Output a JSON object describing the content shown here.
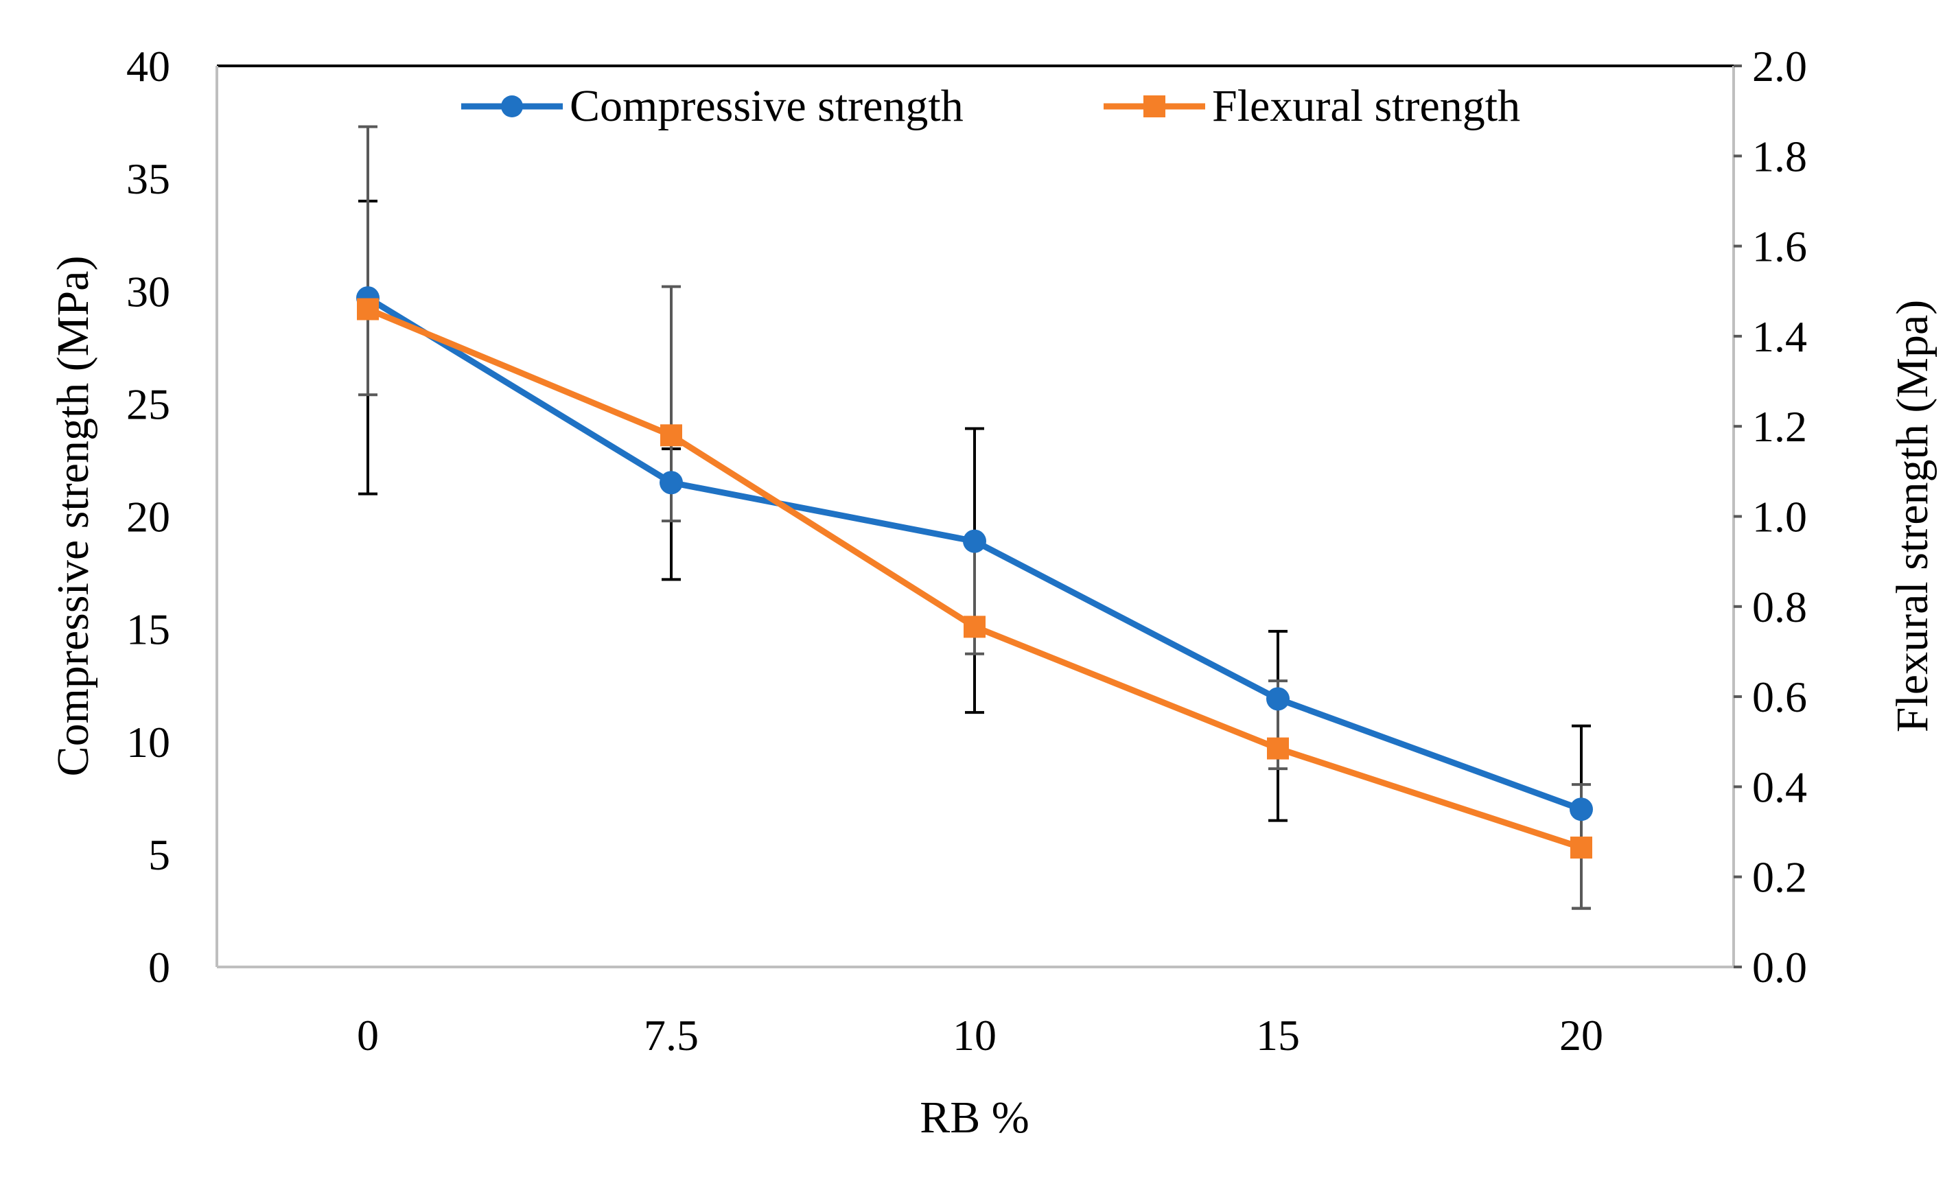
{
  "chart_data": {
    "type": "line",
    "categories": [
      "0",
      "7.5",
      "10",
      "15",
      "20"
    ],
    "xlabel": "RB %",
    "ylabel_left": "Compressive  strength  (MPa)",
    "ylabel_right": "Flexural  strength  (Mpa)",
    "ylim_left": [
      0,
      40
    ],
    "ylim_right": [
      0.0,
      2.0
    ],
    "yticks_left": [
      "0",
      "5",
      "10",
      "15",
      "20",
      "25",
      "30",
      "35",
      "40"
    ],
    "yticks_right": [
      "0.0",
      "0.2",
      "0.4",
      "0.6",
      "0.8",
      "1.0",
      "1.2",
      "1.4",
      "1.6",
      "1.8",
      "2.0"
    ],
    "grid": false,
    "legend_position": "top",
    "series": [
      {
        "name": "Compressive strength",
        "axis": "left",
        "color": "#1F72C4",
        "marker": "circle",
        "values": [
          29.7,
          21.5,
          18.9,
          11.9,
          7.0
        ],
        "error_low": [
          21.0,
          17.2,
          11.3,
          6.5,
          2.6
        ],
        "error_high": [
          34.0,
          23.0,
          23.9,
          14.9,
          10.7
        ]
      },
      {
        "name": "Flexural strength",
        "axis": "right",
        "color": "#F57F27",
        "marker": "square",
        "values": [
          1.46,
          1.18,
          0.755,
          0.485,
          0.265
        ],
        "error_low": [
          1.27,
          0.99,
          0.695,
          0.44,
          0.13
        ],
        "error_high": [
          1.865,
          1.51,
          0.95,
          0.635,
          0.405
        ]
      }
    ]
  }
}
